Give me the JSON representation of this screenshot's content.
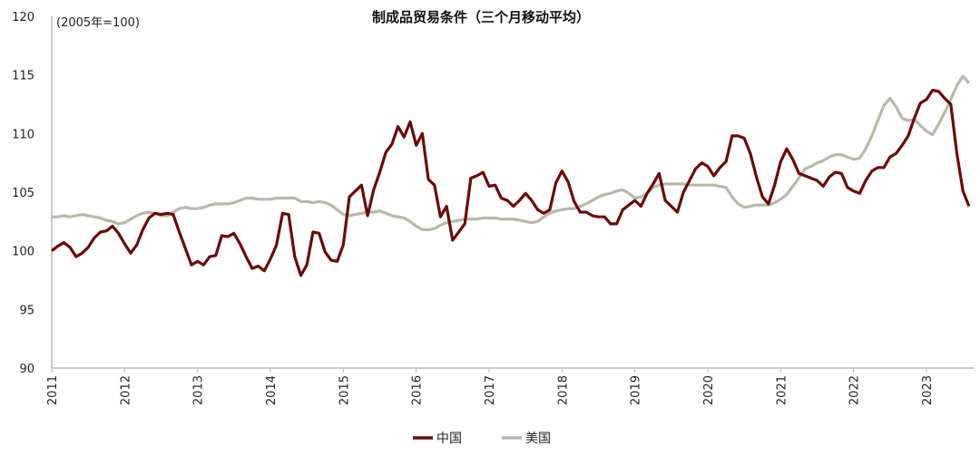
{
  "chart_data": {
    "type": "line",
    "title": "制成品贸易条件（三个月移动平均）",
    "unit_label": "(2005年=100)",
    "ylim": [
      90,
      120
    ],
    "yticks": [
      90,
      95,
      100,
      105,
      110,
      115,
      120
    ],
    "xticks": [
      "2011",
      "2012",
      "2013",
      "2014",
      "2015",
      "2016",
      "2017",
      "2018",
      "2019",
      "2020",
      "2021",
      "2022",
      "2023"
    ],
    "x_start": "2011-01",
    "x_frequency": "monthly",
    "grid": false,
    "legend_position": "bottom",
    "series": [
      {
        "name": "中国",
        "color": "#6b0a0a",
        "values": [
          100.0,
          100.4,
          100.7,
          100.3,
          99.5,
          99.8,
          100.3,
          101.1,
          101.6,
          101.7,
          102.1,
          101.5,
          100.6,
          99.8,
          100.5,
          101.8,
          102.8,
          103.2,
          103.1,
          103.2,
          103.1,
          101.6,
          100.2,
          98.8,
          99.1,
          98.8,
          99.5,
          99.6,
          101.3,
          101.2,
          101.5,
          100.6,
          99.5,
          98.5,
          98.7,
          98.3,
          99.3,
          100.5,
          103.2,
          103.1,
          99.5,
          97.9,
          98.8,
          101.6,
          101.5,
          99.9,
          99.2,
          99.1,
          100.5,
          104.6,
          105.1,
          105.6,
          103.0,
          105.2,
          106.7,
          108.4,
          109.1,
          110.6,
          109.7,
          111.0,
          109.0,
          110.0,
          106.1,
          105.6,
          102.9,
          103.8,
          100.9,
          101.6,
          102.3,
          106.2,
          106.4,
          106.7,
          105.5,
          105.6,
          104.5,
          104.3,
          103.8,
          104.3,
          104.9,
          104.3,
          103.5,
          103.2,
          103.5,
          105.8,
          106.8,
          105.9,
          104.2,
          103.3,
          103.3,
          103.0,
          102.9,
          102.9,
          102.3,
          102.3,
          103.5,
          103.9,
          104.3,
          103.8,
          104.9,
          105.7,
          106.6,
          104.3,
          103.8,
          103.3,
          105.0,
          106.0,
          107.0,
          107.5,
          107.2,
          106.4,
          107.1,
          107.6,
          109.8,
          109.8,
          109.6,
          108.3,
          106.3,
          104.6,
          104.0,
          105.6,
          107.6,
          108.7,
          107.8,
          106.6,
          106.4,
          106.2,
          106.0,
          105.5,
          106.3,
          106.7,
          106.6,
          105.4,
          105.1,
          104.9,
          106.0,
          106.8,
          107.1,
          107.1,
          108.0,
          108.3,
          109.0,
          109.8,
          111.3,
          112.6,
          112.9,
          113.7,
          113.6,
          113.0,
          112.5,
          108.3,
          105.1,
          103.8
        ]
      },
      {
        "name": "美国",
        "color": "#b9b9aa",
        "values": [
          102.9,
          102.9,
          103.0,
          102.9,
          103.0,
          103.1,
          103.0,
          102.9,
          102.8,
          102.6,
          102.5,
          102.3,
          102.4,
          102.7,
          103.0,
          103.2,
          103.3,
          103.2,
          103.0,
          103.0,
          103.3,
          103.6,
          103.7,
          103.6,
          103.6,
          103.7,
          103.9,
          104.0,
          104.0,
          104.0,
          104.1,
          104.3,
          104.5,
          104.5,
          104.4,
          104.4,
          104.4,
          104.5,
          104.5,
          104.5,
          104.5,
          104.2,
          104.2,
          104.1,
          104.2,
          104.1,
          103.9,
          103.5,
          103.1,
          103.0,
          103.1,
          103.2,
          103.3,
          103.3,
          103.4,
          103.2,
          103.0,
          102.9,
          102.8,
          102.5,
          102.1,
          101.8,
          101.8,
          101.9,
          102.2,
          102.4,
          102.5,
          102.6,
          102.7,
          102.7,
          102.7,
          102.8,
          102.8,
          102.8,
          102.7,
          102.7,
          102.7,
          102.6,
          102.5,
          102.4,
          102.5,
          102.9,
          103.2,
          103.4,
          103.5,
          103.6,
          103.6,
          103.8,
          104.0,
          104.3,
          104.6,
          104.8,
          104.9,
          105.1,
          105.2,
          104.9,
          104.5,
          104.6,
          104.9,
          105.4,
          105.6,
          105.7,
          105.7,
          105.7,
          105.7,
          105.6,
          105.6,
          105.6,
          105.6,
          105.6,
          105.5,
          105.4,
          104.6,
          104.0,
          103.7,
          103.8,
          103.9,
          103.9,
          103.9,
          104.1,
          104.4,
          104.8,
          105.5,
          106.2,
          107.0,
          107.2,
          107.5,
          107.7,
          108.0,
          108.2,
          108.2,
          108.0,
          107.8,
          107.9,
          108.7,
          109.8,
          111.1,
          112.4,
          113.0,
          112.3,
          111.3,
          111.1,
          111.2,
          110.7,
          110.2,
          109.9,
          110.8,
          111.8,
          112.9,
          114.1,
          114.9,
          114.3
        ]
      }
    ]
  }
}
